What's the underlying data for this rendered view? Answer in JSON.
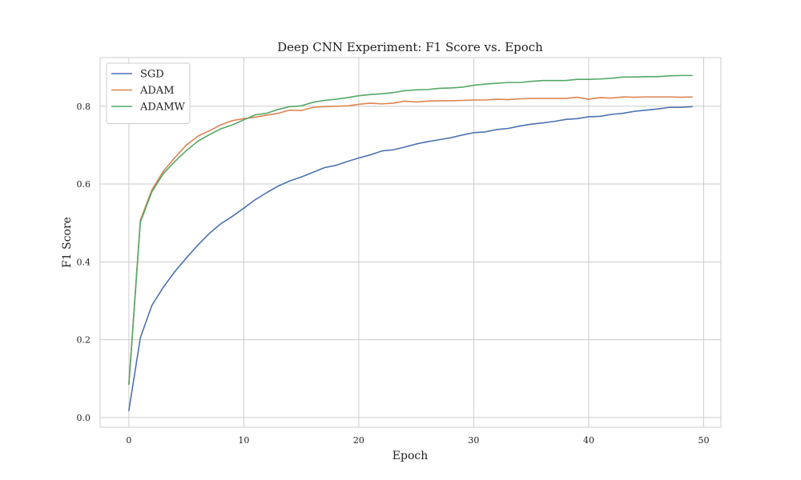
{
  "chart_data": {
    "type": "line",
    "title": "Deep CNN Experiment: F1 Score vs. Epoch",
    "xlabel": "Epoch",
    "ylabel": "F1 Score",
    "xlim": [
      -2.5,
      51.5
    ],
    "ylim": [
      -0.025,
      0.925
    ],
    "x_ticks": [
      0,
      10,
      20,
      30,
      40,
      50
    ],
    "y_ticks": [
      0.0,
      0.2,
      0.4,
      0.6,
      0.8
    ],
    "x_tick_labels": [
      "0",
      "10",
      "20",
      "30",
      "40",
      "50"
    ],
    "y_tick_labels": [
      "0.0",
      "0.2",
      "0.4",
      "0.6",
      "0.8"
    ],
    "grid": true,
    "legend_position": "top-left",
    "x": [
      0,
      1,
      2,
      3,
      4,
      5,
      6,
      7,
      8,
      9,
      10,
      11,
      12,
      13,
      14,
      15,
      16,
      17,
      18,
      19,
      20,
      21,
      22,
      23,
      24,
      25,
      26,
      27,
      28,
      29,
      30,
      31,
      32,
      33,
      34,
      35,
      36,
      37,
      38,
      39,
      40,
      41,
      42,
      43,
      44,
      45,
      46,
      47,
      48,
      49
    ],
    "series": [
      {
        "name": "SGD",
        "color": "#4c72b0",
        "values": [
          0.018,
          0.205,
          0.288,
          0.335,
          0.375,
          0.41,
          0.443,
          0.473,
          0.498,
          0.517,
          0.538,
          0.56,
          0.578,
          0.595,
          0.608,
          0.618,
          0.63,
          0.642,
          0.648,
          0.658,
          0.667,
          0.675,
          0.685,
          0.688,
          0.695,
          0.703,
          0.709,
          0.714,
          0.719,
          0.726,
          0.732,
          0.734,
          0.74,
          0.743,
          0.749,
          0.754,
          0.757,
          0.761,
          0.766,
          0.768,
          0.773,
          0.774,
          0.779,
          0.782,
          0.787,
          0.79,
          0.793,
          0.797,
          0.797,
          0.799
        ]
      },
      {
        "name": "ADAM",
        "color": "#dd8452",
        "values": [
          0.085,
          0.507,
          0.585,
          0.633,
          0.668,
          0.7,
          0.723,
          0.737,
          0.752,
          0.763,
          0.768,
          0.772,
          0.777,
          0.782,
          0.79,
          0.789,
          0.797,
          0.799,
          0.8,
          0.801,
          0.805,
          0.808,
          0.806,
          0.808,
          0.813,
          0.811,
          0.813,
          0.814,
          0.814,
          0.815,
          0.816,
          0.816,
          0.818,
          0.817,
          0.819,
          0.82,
          0.82,
          0.82,
          0.82,
          0.823,
          0.818,
          0.822,
          0.821,
          0.824,
          0.823,
          0.824,
          0.824,
          0.824,
          0.823,
          0.824
        ]
      },
      {
        "name": "ADAMW",
        "color": "#55a868",
        "values": [
          0.085,
          0.502,
          0.58,
          0.627,
          0.658,
          0.686,
          0.71,
          0.727,
          0.742,
          0.752,
          0.765,
          0.778,
          0.782,
          0.792,
          0.799,
          0.801,
          0.81,
          0.815,
          0.818,
          0.822,
          0.827,
          0.83,
          0.832,
          0.835,
          0.84,
          0.842,
          0.843,
          0.846,
          0.847,
          0.849,
          0.854,
          0.857,
          0.859,
          0.861,
          0.861,
          0.864,
          0.866,
          0.866,
          0.866,
          0.869,
          0.869,
          0.87,
          0.872,
          0.875,
          0.875,
          0.876,
          0.876,
          0.878,
          0.879,
          0.879
        ]
      }
    ]
  }
}
